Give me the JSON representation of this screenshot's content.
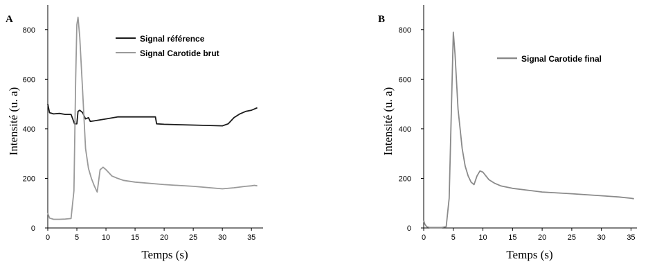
{
  "chart_data": [
    {
      "type": "line",
      "panel": "A",
      "xlabel": "Temps (s)",
      "ylabel": "Intensité (u. a)",
      "xlim": [
        0,
        37
      ],
      "ylim": [
        0,
        900
      ],
      "xticks": [
        0,
        5,
        10,
        15,
        20,
        25,
        30,
        35
      ],
      "yticks": [
        0,
        200,
        400,
        600,
        800
      ],
      "legend_position": "top-right",
      "series": [
        {
          "name": "Signal référence",
          "color": "#1a1a1a",
          "x": [
            0,
            0.3,
            1,
            2,
            3,
            4,
            4.6,
            5,
            5.2,
            5.5,
            6,
            6.5,
            7,
            7.3,
            8,
            10,
            12,
            15,
            18.5,
            18.7,
            20,
            25,
            30,
            31,
            32,
            33,
            34,
            35,
            35.5,
            36
          ],
          "y": [
            500,
            465,
            460,
            462,
            458,
            458,
            420,
            420,
            470,
            475,
            465,
            440,
            445,
            430,
            432,
            440,
            448,
            448,
            448,
            420,
            418,
            415,
            412,
            420,
            445,
            460,
            470,
            475,
            480,
            485
          ]
        },
        {
          "name": "Signal Carotide brut",
          "color": "#9a9a9a",
          "x": [
            0,
            0.3,
            1,
            2,
            3,
            4,
            4.5,
            4.8,
            5,
            5.2,
            5.5,
            6,
            6.5,
            7,
            7.5,
            8,
            8.5,
            9,
            9.5,
            10,
            11,
            12,
            13,
            15,
            20,
            25,
            30,
            32,
            34,
            35,
            35.5,
            36
          ],
          "y": [
            60,
            40,
            35,
            35,
            36,
            38,
            150,
            600,
            820,
            850,
            770,
            550,
            320,
            240,
            200,
            170,
            145,
            235,
            245,
            235,
            210,
            200,
            192,
            185,
            175,
            168,
            158,
            162,
            168,
            170,
            172,
            170
          ]
        }
      ]
    },
    {
      "type": "line",
      "panel": "B",
      "xlabel": "Temps (s)",
      "ylabel": "Intensité (u. a)",
      "xlim": [
        0,
        36
      ],
      "ylim": [
        0,
        900
      ],
      "xticks": [
        0,
        5,
        10,
        15,
        20,
        25,
        30,
        35
      ],
      "yticks": [
        0,
        200,
        400,
        600,
        800
      ],
      "legend_position": "top-right",
      "series": [
        {
          "name": "Signal Carotide final",
          "color": "#8a8a8a",
          "x": [
            0,
            0.2,
            0.5,
            1,
            2,
            3,
            3.8,
            4.3,
            4.7,
            5,
            5.3,
            5.8,
            6.5,
            7,
            7.5,
            8,
            8.5,
            9,
            9.5,
            10,
            11,
            12,
            13,
            15,
            20,
            25,
            30,
            33,
            35,
            35.5
          ],
          "y": [
            30,
            15,
            5,
            2,
            2,
            2,
            5,
            120,
            500,
            790,
            700,
            480,
            320,
            250,
            210,
            185,
            175,
            210,
            230,
            225,
            195,
            180,
            170,
            160,
            145,
            138,
            130,
            125,
            120,
            118
          ]
        }
      ]
    }
  ]
}
